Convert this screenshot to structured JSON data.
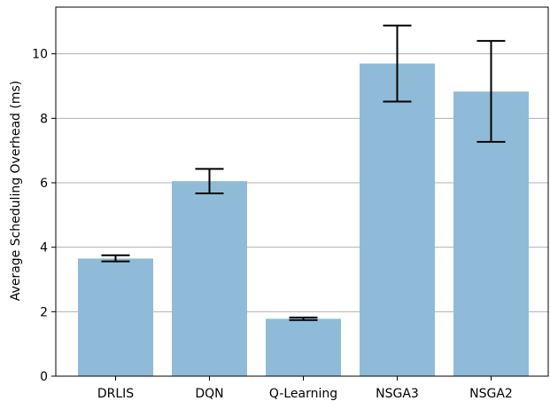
{
  "chart_data": {
    "type": "bar",
    "title": "",
    "xlabel": "",
    "ylabel": "Average Scheduling Overhead (ms)",
    "categories": [
      "DRLIS",
      "DQN",
      "Q-Learning",
      "NSGA3",
      "NSGA2"
    ],
    "values": [
      3.65,
      6.05,
      1.78,
      9.7,
      8.83
    ],
    "error_low": [
      3.56,
      5.67,
      1.74,
      8.52,
      7.27
    ],
    "error_high": [
      3.75,
      6.43,
      1.82,
      10.88,
      10.4
    ],
    "ylim": [
      0,
      11.45
    ],
    "yticks": [
      0,
      2,
      4,
      6,
      8,
      10
    ],
    "grid": "y",
    "legend": "none",
    "colors": {
      "bar": "#8fbbd9",
      "error_bar": "#000000",
      "grid": "#b0b0b0",
      "axis": "#000000"
    }
  }
}
